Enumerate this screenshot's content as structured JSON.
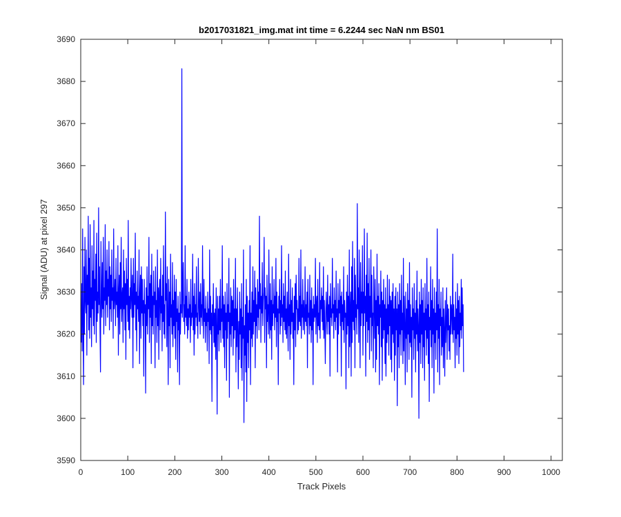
{
  "chart_data": {
    "type": "line",
    "title": "b2017031821_img.mat int time = 6.2244 sec  NaN nm BS01",
    "xlabel": "Track Pixels",
    "ylabel": "Signal (ADU) at pixel 297",
    "xlim": [
      0,
      1024
    ],
    "ylim": [
      3590,
      3690
    ],
    "xticks": [
      0,
      100,
      200,
      300,
      400,
      500,
      600,
      700,
      800,
      900,
      1000
    ],
    "yticks": [
      3590,
      3600,
      3610,
      3620,
      3630,
      3640,
      3650,
      3660,
      3670,
      3680,
      3690
    ],
    "grid": false,
    "series": [
      {
        "color": "#0000ff",
        "x_start": 1,
        "x_step": 1,
        "values": [
          3618,
          3632,
          3616,
          3645,
          3622,
          3608,
          3636,
          3620,
          3643,
          3628,
          3625,
          3640,
          3615,
          3634,
          3627,
          3648,
          3621,
          3638,
          3619,
          3646,
          3624,
          3631,
          3617,
          3641,
          3626,
          3635,
          3622,
          3647,
          3620,
          3633,
          3628,
          3639,
          3618,
          3644,
          3623,
          3630,
          3625,
          3650,
          3627,
          3636,
          3621,
          3611,
          3642,
          3629,
          3624,
          3637,
          3626,
          3643,
          3620,
          3631,
          3628,
          3646,
          3622,
          3635,
          3627,
          3640,
          3624,
          3633,
          3629,
          3642,
          3621,
          3636,
          3626,
          3634,
          3623,
          3640,
          3628,
          3631,
          3619,
          3645,
          3626,
          3629,
          3633,
          3622,
          3638,
          3627,
          3630,
          3624,
          3641,
          3615,
          3630,
          3634,
          3620,
          3637,
          3626,
          3643,
          3623,
          3629,
          3631,
          3618,
          3640,
          3626,
          3635,
          3621,
          3632,
          3614,
          3638,
          3627,
          3633,
          3623,
          3647,
          3621,
          3629,
          3619,
          3631,
          3626,
          3638,
          3628,
          3624,
          3634,
          3612,
          3638,
          3624,
          3632,
          3627,
          3644,
          3621,
          3630,
          3616,
          3635,
          3626,
          3629,
          3623,
          3640,
          3613,
          3629,
          3634,
          3619,
          3636,
          3625,
          3633,
          3622,
          3628,
          3610,
          3633,
          3625,
          3627,
          3606,
          3631,
          3622,
          3636,
          3620,
          3629,
          3626,
          3643,
          3618,
          3632,
          3624,
          3634,
          3613,
          3639,
          3622,
          3629,
          3620,
          3635,
          3627,
          3630,
          3612,
          3636,
          3624,
          3628,
          3618,
          3640,
          3622,
          3631,
          3614,
          3630,
          3633,
          3621,
          3638,
          3625,
          3629,
          3616,
          3634,
          3623,
          3641,
          3620,
          3627,
          3619,
          3649,
          3628,
          3632,
          3617,
          3636,
          3625,
          3608,
          3633,
          3622,
          3630,
          3612,
          3639,
          3624,
          3627,
          3620,
          3637,
          3617,
          3628,
          3622,
          3634,
          3619,
          3630,
          3614,
          3633,
          3623,
          3626,
          3611,
          3629,
          3621,
          3625,
          3608,
          3630,
          3620,
          3627,
          3625,
          3683,
          3624,
          3629,
          3637,
          3623,
          3627,
          3620,
          3641,
          3624,
          3629,
          3622,
          3633,
          3619,
          3626,
          3621,
          3630,
          3624,
          3627,
          3618,
          3633,
          3622,
          3625,
          3624,
          3639,
          3621,
          3629,
          3615,
          3632,
          3620,
          3627,
          3624,
          3636,
          3622,
          3625,
          3619,
          3638,
          3627,
          3623,
          3630,
          3620,
          3632,
          3624,
          3627,
          3622,
          3641,
          3626,
          3619,
          3633,
          3623,
          3626,
          3618,
          3629,
          3622,
          3625,
          3616,
          3630,
          3623,
          3626,
          3613,
          3640,
          3621,
          3629,
          3620,
          3625,
          3604,
          3627,
          3622,
          3632,
          3618,
          3625,
          3617,
          3626,
          3614,
          3631,
          3622,
          3601,
          3629,
          3620,
          3626,
          3616,
          3629,
          3621,
          3633,
          3618,
          3626,
          3623,
          3641,
          3619,
          3629,
          3617,
          3627,
          3612,
          3630,
          3621,
          3625,
          3609,
          3632,
          3619,
          3627,
          3623,
          3638,
          3605,
          3625,
          3620,
          3631,
          3617,
          3629,
          3622,
          3628,
          3615,
          3633,
          3619,
          3626,
          3621,
          3638,
          3611,
          3626,
          3617,
          3631,
          3621,
          3607,
          3623,
          3614,
          3630,
          3620,
          3626,
          3612,
          3632,
          3609,
          3624,
          3619,
          3640,
          3599,
          3622,
          3615,
          3627,
          3611,
          3633,
          3604,
          3629,
          3618,
          3625,
          3612,
          3628,
          3621,
          3641,
          3608,
          3625,
          3619,
          3630,
          3617,
          3636,
          3620,
          3628,
          3623,
          3635,
          3612,
          3631,
          3622,
          3627,
          3619,
          3633,
          3624,
          3630,
          3621,
          3648,
          3626,
          3632,
          3618,
          3629,
          3625,
          3637,
          3622,
          3628,
          3630,
          3643,
          3618,
          3631,
          3626,
          3629,
          3612,
          3634,
          3623,
          3627,
          3620,
          3640,
          3625,
          3619,
          3632,
          3621,
          3628,
          3614,
          3636,
          3622,
          3627,
          3625,
          3633,
          3621,
          3629,
          3624,
          3638,
          3617,
          3630,
          3623,
          3626,
          3608,
          3629,
          3625,
          3633,
          3620,
          3628,
          3622,
          3641,
          3624,
          3627,
          3618,
          3632,
          3623,
          3629,
          3621,
          3635,
          3620,
          3626,
          3619,
          3630,
          3624,
          3616,
          3639,
          3622,
          3627,
          3614,
          3633,
          3620,
          3628,
          3623,
          3631,
          3619,
          3625,
          3608,
          3629,
          3621,
          3632,
          3617,
          3634,
          3626,
          3628,
          3620,
          3626,
          3621,
          3638,
          3623,
          3629,
          3622,
          3640,
          3619,
          3627,
          3624,
          3633,
          3621,
          3628,
          3625,
          3620,
          3636,
          3623,
          3627,
          3622,
          3630,
          3612,
          3633,
          3624,
          3625,
          3620,
          3634,
          3622,
          3628,
          3618,
          3631,
          3621,
          3626,
          3608,
          3629,
          3623,
          3627,
          3624,
          3638,
          3620,
          3627,
          3629,
          3618,
          3633,
          3622,
          3625,
          3621,
          3637,
          3619,
          3628,
          3626,
          3631,
          3623,
          3629,
          3621,
          3636,
          3619,
          3628,
          3622,
          3613,
          3625,
          3630,
          3624,
          3620,
          3634,
          3623,
          3627,
          3620,
          3629,
          3610,
          3632,
          3624,
          3626,
          3622,
          3638,
          3625,
          3627,
          3619,
          3631,
          3623,
          3628,
          3621,
          3635,
          3624,
          3626,
          3611,
          3632,
          3620,
          3628,
          3625,
          3633,
          3622,
          3629,
          3610,
          3630,
          3623,
          3627,
          3621,
          3636,
          3618,
          3628,
          3624,
          3625,
          3607,
          3630,
          3620,
          3634,
          3622,
          3629,
          3612,
          3640,
          3617,
          3626,
          3630,
          3610,
          3636,
          3618,
          3642,
          3623,
          3628,
          3621,
          3638,
          3612,
          3634,
          3624,
          3627,
          3620,
          3651,
          3626,
          3631,
          3618,
          3640,
          3628,
          3612,
          3637,
          3622,
          3630,
          3625,
          3641,
          3615,
          3630,
          3622,
          3645,
          3625,
          3629,
          3610,
          3634,
          3623,
          3644,
          3618,
          3632,
          3621,
          3638,
          3614,
          3629,
          3624,
          3640,
          3616,
          3634,
          3622,
          3625,
          3612,
          3636,
          3627,
          3619,
          3633,
          3611,
          3628,
          3614,
          3639,
          3622,
          3629,
          3620,
          3632,
          3608,
          3627,
          3624,
          3635,
          3617,
          3630,
          3609,
          3628,
          3619,
          3633,
          3621,
          3627,
          3613,
          3631,
          3610,
          3626,
          3618,
          3634,
          3620,
          3627,
          3615,
          3633,
          3622,
          3629,
          3614,
          3628,
          3611,
          3630,
          3620,
          3632,
          3618,
          3626,
          3609,
          3629,
          3615,
          3631,
          3621,
          3626,
          3603,
          3630,
          3617,
          3627,
          3612,
          3632,
          3620,
          3628,
          3615,
          3634,
          3621,
          3625,
          3613,
          3638,
          3616,
          3629,
          3622,
          3608,
          3630,
          3619,
          3626,
          3611,
          3632,
          3620,
          3628,
          3614,
          3637,
          3618,
          3627,
          3617,
          3624,
          3605,
          3631,
          3621,
          3626,
          3614,
          3632,
          3619,
          3625,
          3611,
          3628,
          3620,
          3635,
          3616,
          3626,
          3622,
          3600,
          3630,
          3618,
          3627,
          3613,
          3633,
          3620,
          3628,
          3612,
          3631,
          3617,
          3625,
          3609,
          3632,
          3621,
          3626,
          3615,
          3638,
          3619,
          3627,
          3613,
          3630,
          3604,
          3624,
          3621,
          3636,
          3617,
          3628,
          3612,
          3633,
          3620,
          3626,
          3606,
          3631,
          3618,
          3625,
          3614,
          3630,
          3621,
          3645,
          3611,
          3627,
          3619,
          3633,
          3608,
          3626,
          3622,
          3630,
          3615,
          3624,
          3617,
          3631,
          3612,
          3626,
          3621,
          3610,
          3628,
          3618,
          3623,
          3631,
          3614,
          3627,
          3621,
          3626,
          3616,
          3622,
          3614,
          3629,
          3620,
          3627,
          3625,
          3620,
          3639,
          3618,
          3627,
          3621,
          3624,
          3612,
          3630,
          3619,
          3626,
          3615,
          3632,
          3620,
          3628,
          3613,
          3629,
          3617,
          3625,
          3621,
          3633,
          3619,
          3631,
          3622,
          3627,
          3611
        ]
      }
    ]
  }
}
